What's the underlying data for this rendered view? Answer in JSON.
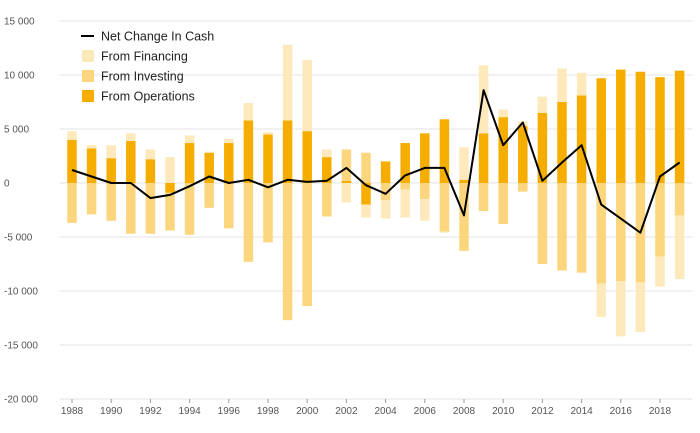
{
  "chart_data": {
    "type": "bar",
    "title": "",
    "xlabel": "",
    "ylabel": "",
    "ylim": [
      -20000,
      15000
    ],
    "y_ticks": [
      15000,
      10000,
      5000,
      0,
      -5000,
      -10000,
      -15000,
      -20000
    ],
    "y_tick_labels": [
      "15 000",
      "10 000",
      "5 000",
      "0",
      "-5 000",
      "-10 000",
      "-15 000",
      "-20 000"
    ],
    "x_tick_labels": [
      "1988",
      "1990",
      "1992",
      "1994",
      "1996",
      "1998",
      "2000",
      "2002",
      "2004",
      "2006",
      "2008",
      "2010",
      "2012",
      "2014",
      "2016",
      "2018"
    ],
    "grid": true,
    "legend_position": "top-left",
    "categories": [
      1988,
      1989,
      1990,
      1991,
      1992,
      1993,
      1994,
      1995,
      1996,
      1997,
      1998,
      1999,
      2000,
      2001,
      2002,
      2003,
      2004,
      2005,
      2006,
      2007,
      2008,
      2009,
      2010,
      2011,
      2012,
      2013,
      2014,
      2015,
      2016,
      2017,
      2018,
      2019
    ],
    "series": [
      {
        "name": "From Operations",
        "kind": "bar",
        "color": "#f5ad00",
        "values": [
          4000,
          3200,
          2300,
          3900,
          2200,
          -900,
          3700,
          2800,
          3700,
          5800,
          4500,
          5800,
          4800,
          2400,
          200,
          -2000,
          2000,
          3700,
          4600,
          5900,
          300,
          4600,
          6100,
          5300,
          6500,
          7500,
          8100,
          9700,
          10500,
          10300,
          9800,
          10400
        ]
      },
      {
        "name": "From Investing",
        "kind": "bar",
        "color": "#fcd57f",
        "values": [
          -3700,
          -2900,
          -3500,
          -4700,
          -4700,
          -3500,
          -4800,
          -2300,
          -4200,
          -7300,
          -5500,
          -12700,
          -11400,
          -3100,
          2900,
          2800,
          -1600,
          -600,
          -1500,
          -4500,
          -6300,
          -2600,
          -3800,
          -800,
          -7500,
          -8100,
          -8300,
          -9300,
          -9100,
          -9200,
          -6800,
          -3000
        ]
      },
      {
        "name": "From Financing",
        "kind": "bar",
        "color": "#fde9bb",
        "values": [
          800,
          300,
          1200,
          700,
          900,
          2400,
          700,
          100,
          400,
          1600,
          200,
          7000,
          6600,
          700,
          -1800,
          -1200,
          -1700,
          -2600,
          -2000,
          -100,
          3000,
          6300,
          700,
          400,
          1500,
          3100,
          2100,
          -3100,
          -5100,
          -4600,
          -2800,
          -5900
        ]
      },
      {
        "name": "Net Change In Cash",
        "kind": "line",
        "color": "#000000",
        "values": [
          1200,
          600,
          0,
          0,
          -1400,
          -1100,
          -300,
          600,
          0,
          300,
          -400,
          300,
          100,
          200,
          1400,
          -200,
          -1000,
          700,
          1400,
          1400,
          -3000,
          8600,
          3500,
          5600,
          200,
          1900,
          3500,
          -2000,
          -3300,
          -4600,
          600,
          1900
        ]
      }
    ]
  }
}
